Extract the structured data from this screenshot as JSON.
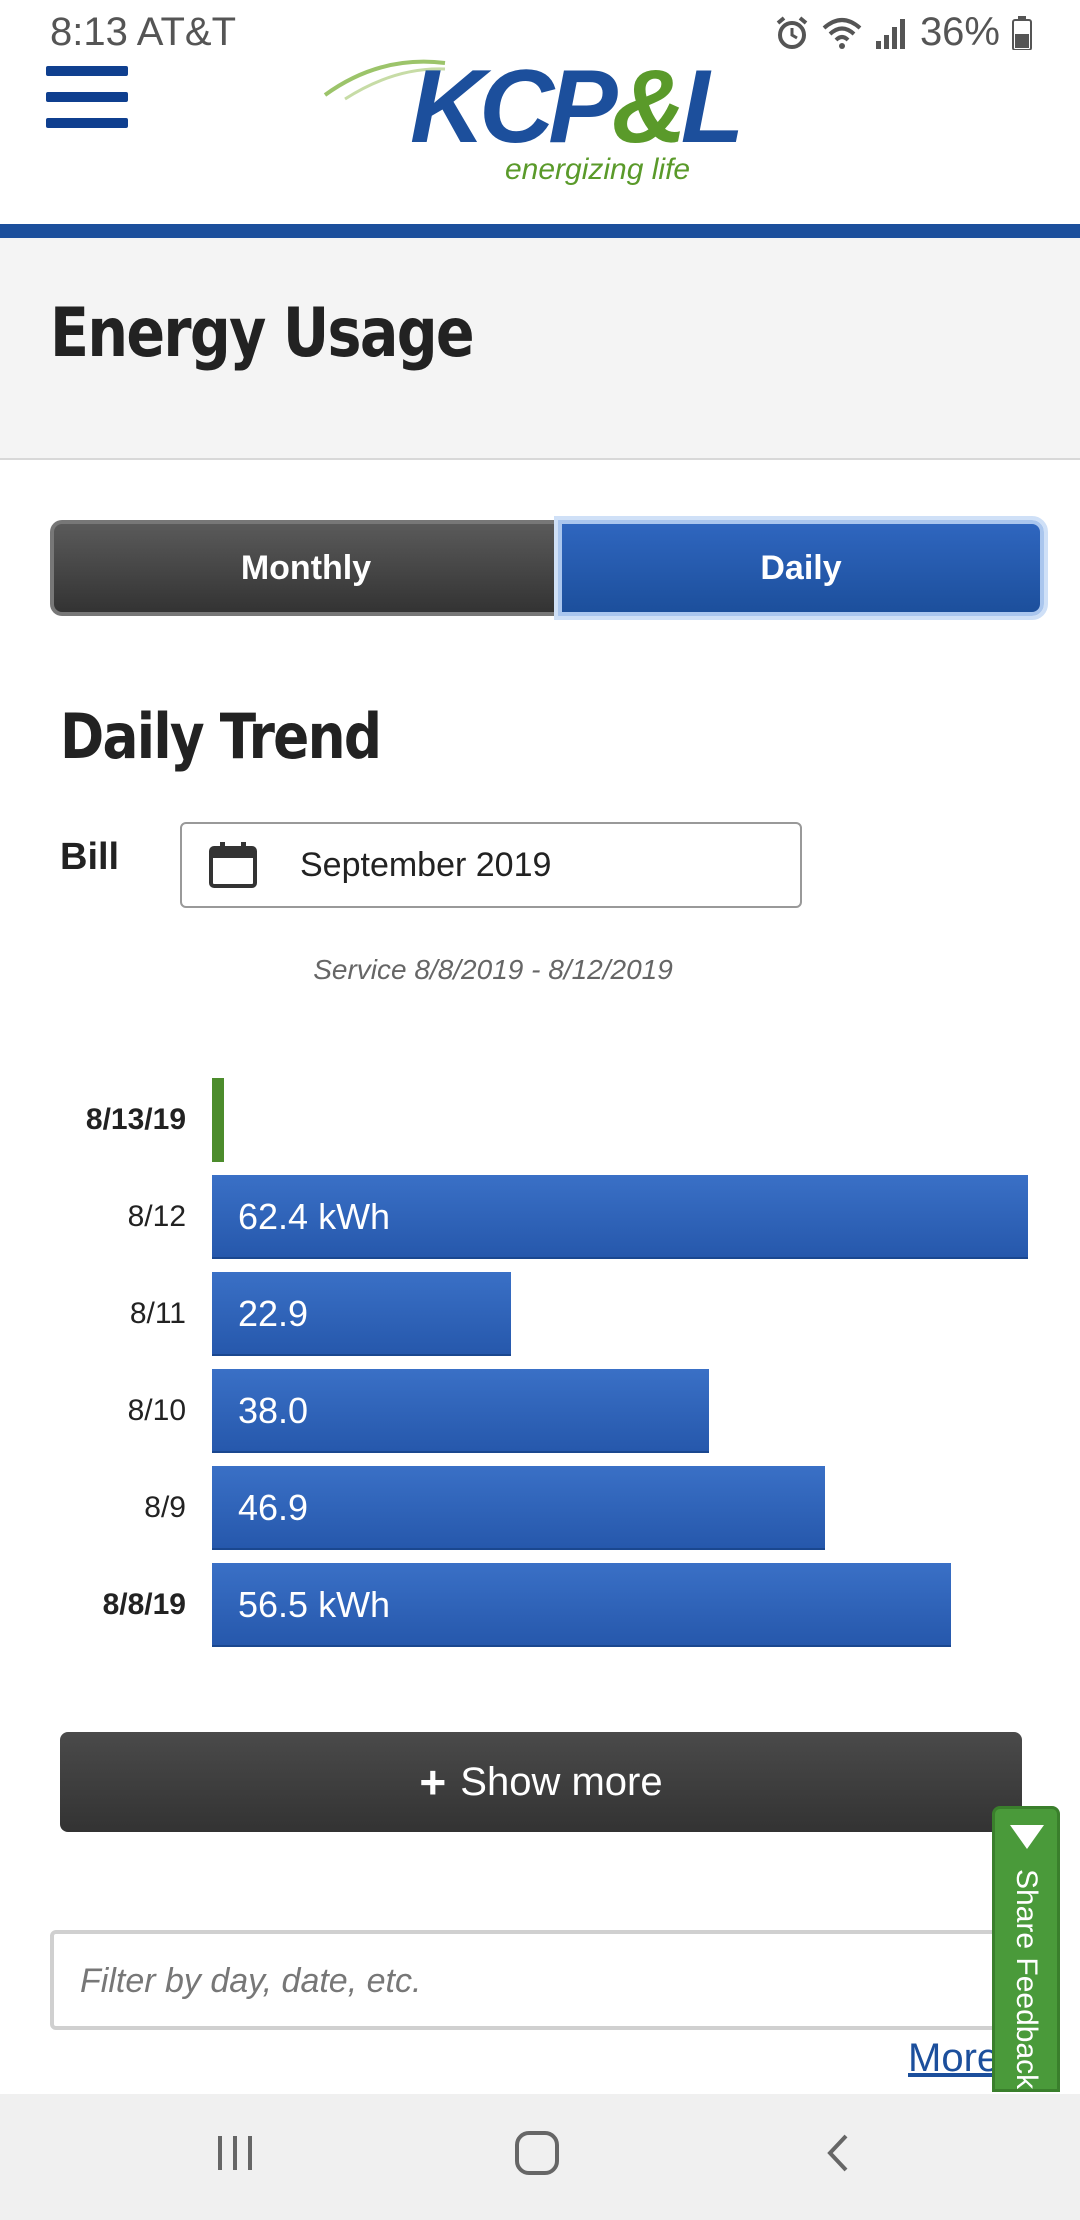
{
  "status_bar": {
    "time": "8:13",
    "carrier": "AT&T",
    "battery": "36%",
    "icons": [
      "alarm-icon",
      "wifi-icon",
      "signal-icon",
      "battery-icon"
    ]
  },
  "header": {
    "logo_brand_left": "KCP",
    "logo_brand_amp": "&",
    "logo_brand_right": "L",
    "logo_tagline": "energizing life",
    "menu_icon": "hamburger-icon",
    "accent_color": "#1c4f9c",
    "brand_green": "#5a9a2a"
  },
  "page": {
    "title": "Energy Usage"
  },
  "toggle": {
    "monthly_label": "Monthly",
    "daily_label": "Daily",
    "selected": "Daily"
  },
  "daily_trend": {
    "title": "Daily Trend",
    "bill_label": "Bill",
    "bill_value": "September 2019",
    "service_text": "Service 8/8/2019 - 8/12/2019"
  },
  "chart_data": {
    "type": "bar",
    "orientation": "horizontal",
    "categories": [
      "8/13/19",
      "8/12",
      "8/11",
      "8/10",
      "8/9",
      "8/8/19"
    ],
    "values": [
      0,
      62.4,
      22.9,
      38.0,
      46.9,
      56.5
    ],
    "value_labels": [
      "",
      "62.4 kWh",
      "22.9",
      "38.0",
      "46.9",
      "56.5 kWh"
    ],
    "bold_categories": [
      "8/13/19",
      "8/8/19"
    ],
    "unit": "kWh",
    "colors": {
      "bar": "#2f66bf",
      "current_day": "#4c8c2c"
    }
  },
  "actions": {
    "show_more_label": "Show more",
    "filter_placeholder": "Filter by day, date, etc.",
    "more_link": "More",
    "feedback_label": "Share Feedback"
  }
}
